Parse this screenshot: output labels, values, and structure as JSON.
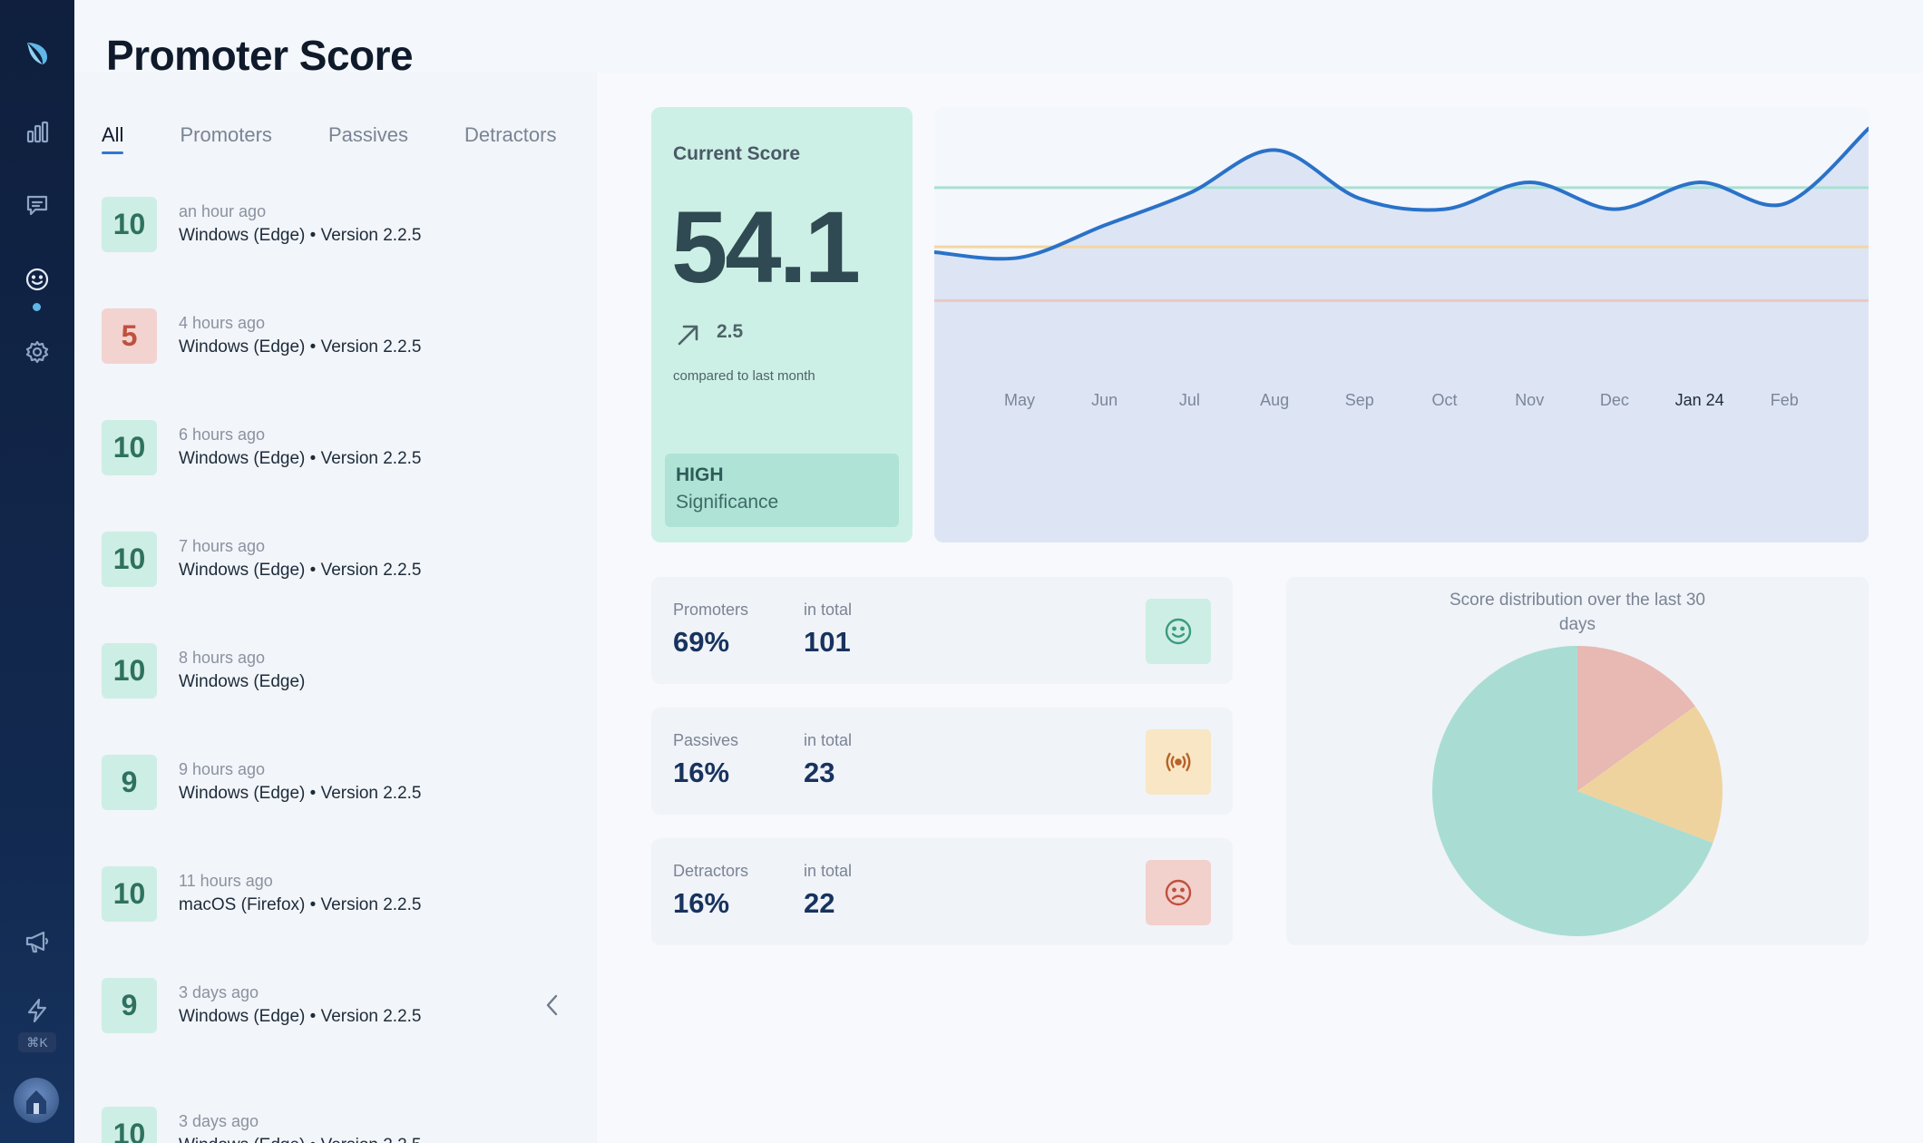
{
  "page": {
    "title": "Promoter Score"
  },
  "sidebar": {
    "items": [
      {
        "name": "logo",
        "icon": "leaf-logo-icon"
      },
      {
        "name": "analytics",
        "icon": "bar-chart-icon"
      },
      {
        "name": "feedback",
        "icon": "chat-icon"
      },
      {
        "name": "promoter-score",
        "icon": "smiley-icon",
        "active": true
      },
      {
        "name": "settings",
        "icon": "gear-icon"
      },
      {
        "name": "announcements",
        "icon": "megaphone-icon"
      },
      {
        "name": "quick-actions",
        "icon": "bolt-icon"
      }
    ],
    "shortcut": "⌘K"
  },
  "tabs": [
    {
      "label": "All",
      "active": true
    },
    {
      "label": "Promoters"
    },
    {
      "label": "Passives"
    },
    {
      "label": "Detractors"
    }
  ],
  "feed": [
    {
      "score": "10",
      "time": "an hour ago",
      "meta": "Windows (Edge) • Version 2.2.5"
    },
    {
      "score": "5",
      "time": "4 hours ago",
      "meta": "Windows (Edge) • Version 2.2.5"
    },
    {
      "score": "10",
      "time": "6 hours ago",
      "meta": "Windows (Edge) • Version 2.2.5"
    },
    {
      "score": "10",
      "time": "7 hours ago",
      "meta": "Windows (Edge) • Version 2.2.5"
    },
    {
      "score": "10",
      "time": "8 hours ago",
      "meta": "Windows (Edge)"
    },
    {
      "score": "9",
      "time": "9 hours ago",
      "meta": "Windows (Edge) • Version 2.2.5"
    },
    {
      "score": "10",
      "time": "11 hours ago",
      "meta": "macOS (Firefox) • Version 2.2.5"
    },
    {
      "score": "9",
      "time": "3 days ago",
      "meta": "Windows (Edge) • Version 2.2.5"
    },
    {
      "score": "10",
      "time": "3 days ago",
      "meta": "Windows (Edge) • Version 2.2.5"
    }
  ],
  "current_score": {
    "label": "Current Score",
    "value": "54.1",
    "delta": "2.5",
    "trend_icon": "arrow-up-right-icon",
    "compare_text": "compared to last month",
    "significance_level": "HIGH",
    "significance_label": "Significance"
  },
  "stats": [
    {
      "label": "Promoters",
      "percent": "69%",
      "total_label": "in total",
      "total": "101",
      "icon": "smiley-icon",
      "color": "#cdeee4",
      "icon_color": "#3c9a82"
    },
    {
      "label": "Passives",
      "percent": "16%",
      "total_label": "in total",
      "total": "23",
      "icon": "broadcast-icon",
      "color": "#f8e6c4",
      "icon_color": "#b8622a"
    },
    {
      "label": "Detractors",
      "percent": "16%",
      "total_label": "in total",
      "total": "22",
      "icon": "sad-face-icon",
      "color": "#f2d0cc",
      "icon_color": "#c0503f"
    }
  ],
  "chart_data": [
    {
      "type": "line",
      "x": [
        "May",
        "Jun",
        "Jul",
        "Aug",
        "Sep",
        "Oct",
        "Nov",
        "Dec",
        "Jan 24",
        "Feb"
      ],
      "current_label": "Jan 24",
      "series": [
        {
          "values": [
            47.5,
            50.5,
            53.5,
            57.5,
            53.0,
            52.0,
            54.5,
            52.0,
            54.5,
            52.5
          ]
        }
      ],
      "end_value": 59.5,
      "reference_lines": [
        {
          "value": 54,
          "color": "#a9e0d2"
        },
        {
          "value": 48.5,
          "color": "#f2d7a4"
        },
        {
          "value": 43.5,
          "color": "#ecc7c4"
        }
      ],
      "ylim": [
        21,
        61.5
      ],
      "line_color": "#2a72c8",
      "fill_color": "#dde5f5"
    },
    {
      "type": "pie",
      "title": "Score distribution over the last 30 days",
      "slices": [
        {
          "name": "Promoters",
          "value": 101,
          "color": "#a9ddd3"
        },
        {
          "name": "Passives",
          "value": 23,
          "color": "#efd39e"
        },
        {
          "name": "Detractors",
          "value": 22,
          "color": "#e8b8b3"
        }
      ]
    }
  ]
}
